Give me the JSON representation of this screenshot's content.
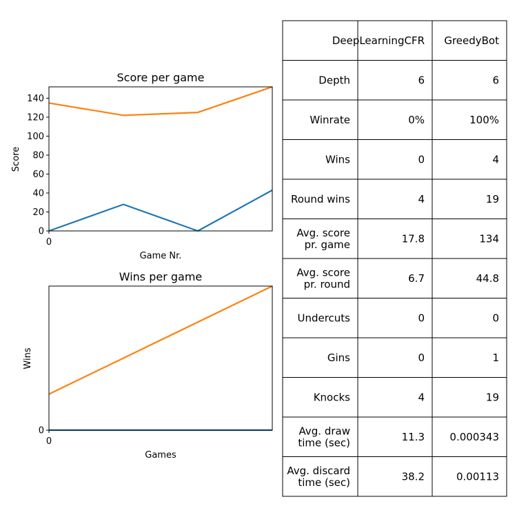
{
  "colors": {
    "series_1": "#1f77b4",
    "series_2": "#ff7f0e"
  },
  "chart_data": [
    {
      "type": "line",
      "title": "Score per game",
      "xlabel": "Game Nr.",
      "ylabel": "Score",
      "x": [
        0,
        1,
        2,
        3
      ],
      "xlim": [
        0,
        3
      ],
      "ylim": [
        0,
        152
      ],
      "x_ticks": [
        0
      ],
      "y_ticks": [
        0,
        20,
        40,
        60,
        80,
        100,
        120,
        140
      ],
      "grid": false,
      "series": [
        {
          "values": [
            0,
            28,
            0,
            43
          ],
          "color": "#1f77b4"
        },
        {
          "values": [
            135,
            122,
            125,
            152
          ],
          "color": "#ff7f0e"
        }
      ]
    },
    {
      "type": "line",
      "title": "Wins per game",
      "xlabel": "Games",
      "ylabel": "Wins",
      "x": [
        0,
        3
      ],
      "xlim": [
        0,
        3
      ],
      "ylim": [
        0,
        4
      ],
      "x_ticks": [
        0
      ],
      "y_ticks": [
        0
      ],
      "grid": false,
      "series": [
        {
          "values": [
            0,
            0
          ],
          "color": "#1f77b4"
        },
        {
          "values": [
            1,
            4
          ],
          "color": "#ff7f0e"
        }
      ]
    },
    {
      "type": "table",
      "columns": [
        "",
        "DeepLearningCFR",
        "GreedyBot"
      ],
      "rows": [
        [
          "Depth",
          "6",
          "6"
        ],
        [
          "Winrate",
          "0%",
          "100%"
        ],
        [
          "Wins",
          "0",
          "4"
        ],
        [
          "Round wins",
          "4",
          "19"
        ],
        [
          "Avg. score\npr. game",
          "17.8",
          "134"
        ],
        [
          "Avg. score\npr. round",
          "6.7",
          "44.8"
        ],
        [
          "Undercuts",
          "0",
          "0"
        ],
        [
          "Gins",
          "0",
          "1"
        ],
        [
          "Knocks",
          "4",
          "19"
        ],
        [
          "Avg. draw\ntime (sec)",
          "11.3",
          "0.000343"
        ],
        [
          "Avg. discard\ntime (sec)",
          "38.2",
          "0.00113"
        ]
      ]
    }
  ]
}
